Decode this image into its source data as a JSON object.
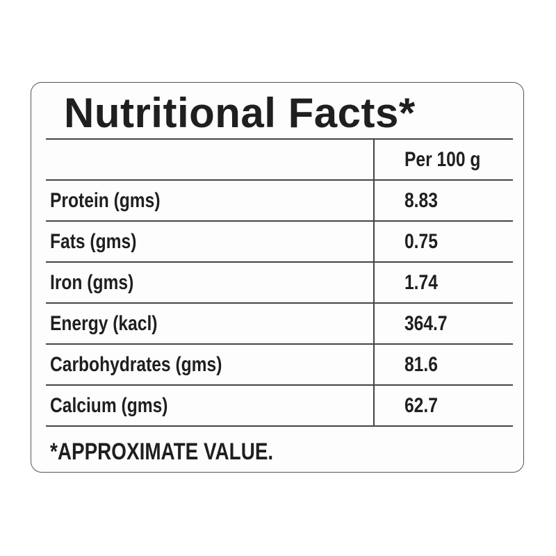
{
  "title": "Nutritional Facts*",
  "header": {
    "label": "",
    "value": "Per 100 g"
  },
  "rows": [
    {
      "label": "Protein (gms)",
      "value": "8.83"
    },
    {
      "label": "Fats (gms)",
      "value": "0.75"
    },
    {
      "label": "Iron (gms)",
      "value": "1.74"
    },
    {
      "label": "Energy (kacl)",
      "value": "364.7"
    },
    {
      "label": "Carbohydrates (gms)",
      "value": "81.6"
    },
    {
      "label": "Calcium (gms)",
      "value": "62.7"
    }
  ],
  "footnote": "*APPROXIMATE VALUE."
}
